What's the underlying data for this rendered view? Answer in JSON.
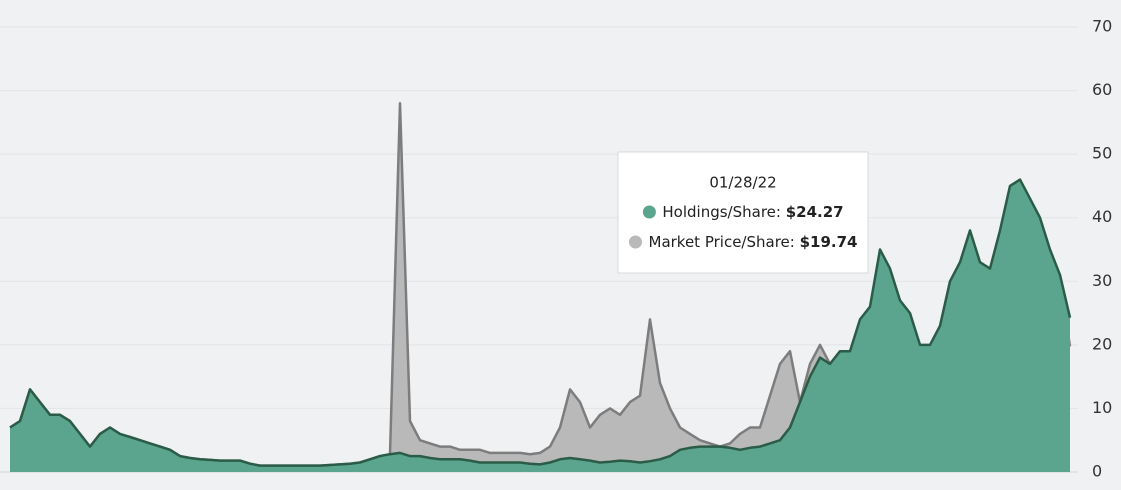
{
  "chart_data": {
    "type": "area",
    "ylim": [
      0,
      70
    ],
    "yticks": [
      0,
      10,
      20,
      30,
      40,
      50,
      60,
      70
    ],
    "grid": true,
    "series": [
      {
        "color": "#b9b9b9",
        "line_color": "#7d7d7d",
        "values": [
          7,
          8,
          13,
          11,
          9,
          9,
          8,
          6,
          4,
          6,
          7,
          6,
          5.5,
          5,
          4.5,
          4,
          3.5,
          2.5,
          2.2,
          2,
          1.9,
          1.8,
          1.8,
          1.8,
          1.3,
          1,
          1,
          1,
          1,
          1,
          1,
          1,
          1.1,
          1.2,
          1.3,
          1.5,
          2,
          2.5,
          2.8,
          58,
          8,
          5,
          4.5,
          4,
          4,
          3.5,
          3.5,
          3.5,
          3,
          3,
          3,
          3,
          2.8,
          3,
          4,
          7,
          13,
          11,
          7,
          9,
          10,
          9,
          11,
          12,
          24,
          14,
          10,
          7,
          6,
          5,
          4.5,
          4,
          4.5,
          6,
          7,
          7,
          12,
          17,
          19,
          11,
          17,
          20,
          17,
          18,
          18,
          23,
          25,
          34,
          31,
          26,
          24,
          19,
          19,
          22,
          29,
          32,
          37,
          32,
          31,
          37,
          44,
          45,
          42,
          39,
          34,
          30,
          19.74
        ]
      },
      {
        "color": "#5ba58f",
        "line_color": "#2b5c47",
        "values": [
          7,
          8,
          13,
          11,
          9,
          9,
          8,
          6,
          4,
          6,
          7,
          6,
          5.5,
          5,
          4.5,
          4,
          3.5,
          2.5,
          2.2,
          2,
          1.9,
          1.8,
          1.8,
          1.8,
          1.3,
          1,
          1,
          1,
          1,
          1,
          1,
          1,
          1.1,
          1.2,
          1.3,
          1.5,
          2,
          2.5,
          2.8,
          3,
          2.5,
          2.5,
          2.2,
          2,
          2,
          2,
          1.8,
          1.5,
          1.5,
          1.5,
          1.5,
          1.5,
          1.3,
          1.2,
          1.5,
          2,
          2.2,
          2,
          1.8,
          1.5,
          1.6,
          1.8,
          1.7,
          1.5,
          1.7,
          2,
          2.5,
          3.5,
          3.8,
          4,
          4,
          4,
          3.8,
          3.5,
          3.8,
          4,
          4.5,
          5,
          7,
          11,
          15,
          18,
          17,
          19,
          19,
          24,
          26,
          35,
          32,
          27,
          25,
          20,
          20,
          23,
          30,
          33,
          38,
          33,
          32,
          38,
          45,
          46,
          43,
          40,
          35,
          31,
          24.27
        ]
      }
    ],
    "tooltip": {
      "date": "01/28/22",
      "items": [
        {
          "label": "Holdings/Share: ",
          "value": 24.27,
          "value_label": "$24.27",
          "series": 1
        },
        {
          "label": "Market Price/Share: ",
          "value": 19.74,
          "value_label": "$19.74",
          "series": 0
        }
      ]
    }
  }
}
